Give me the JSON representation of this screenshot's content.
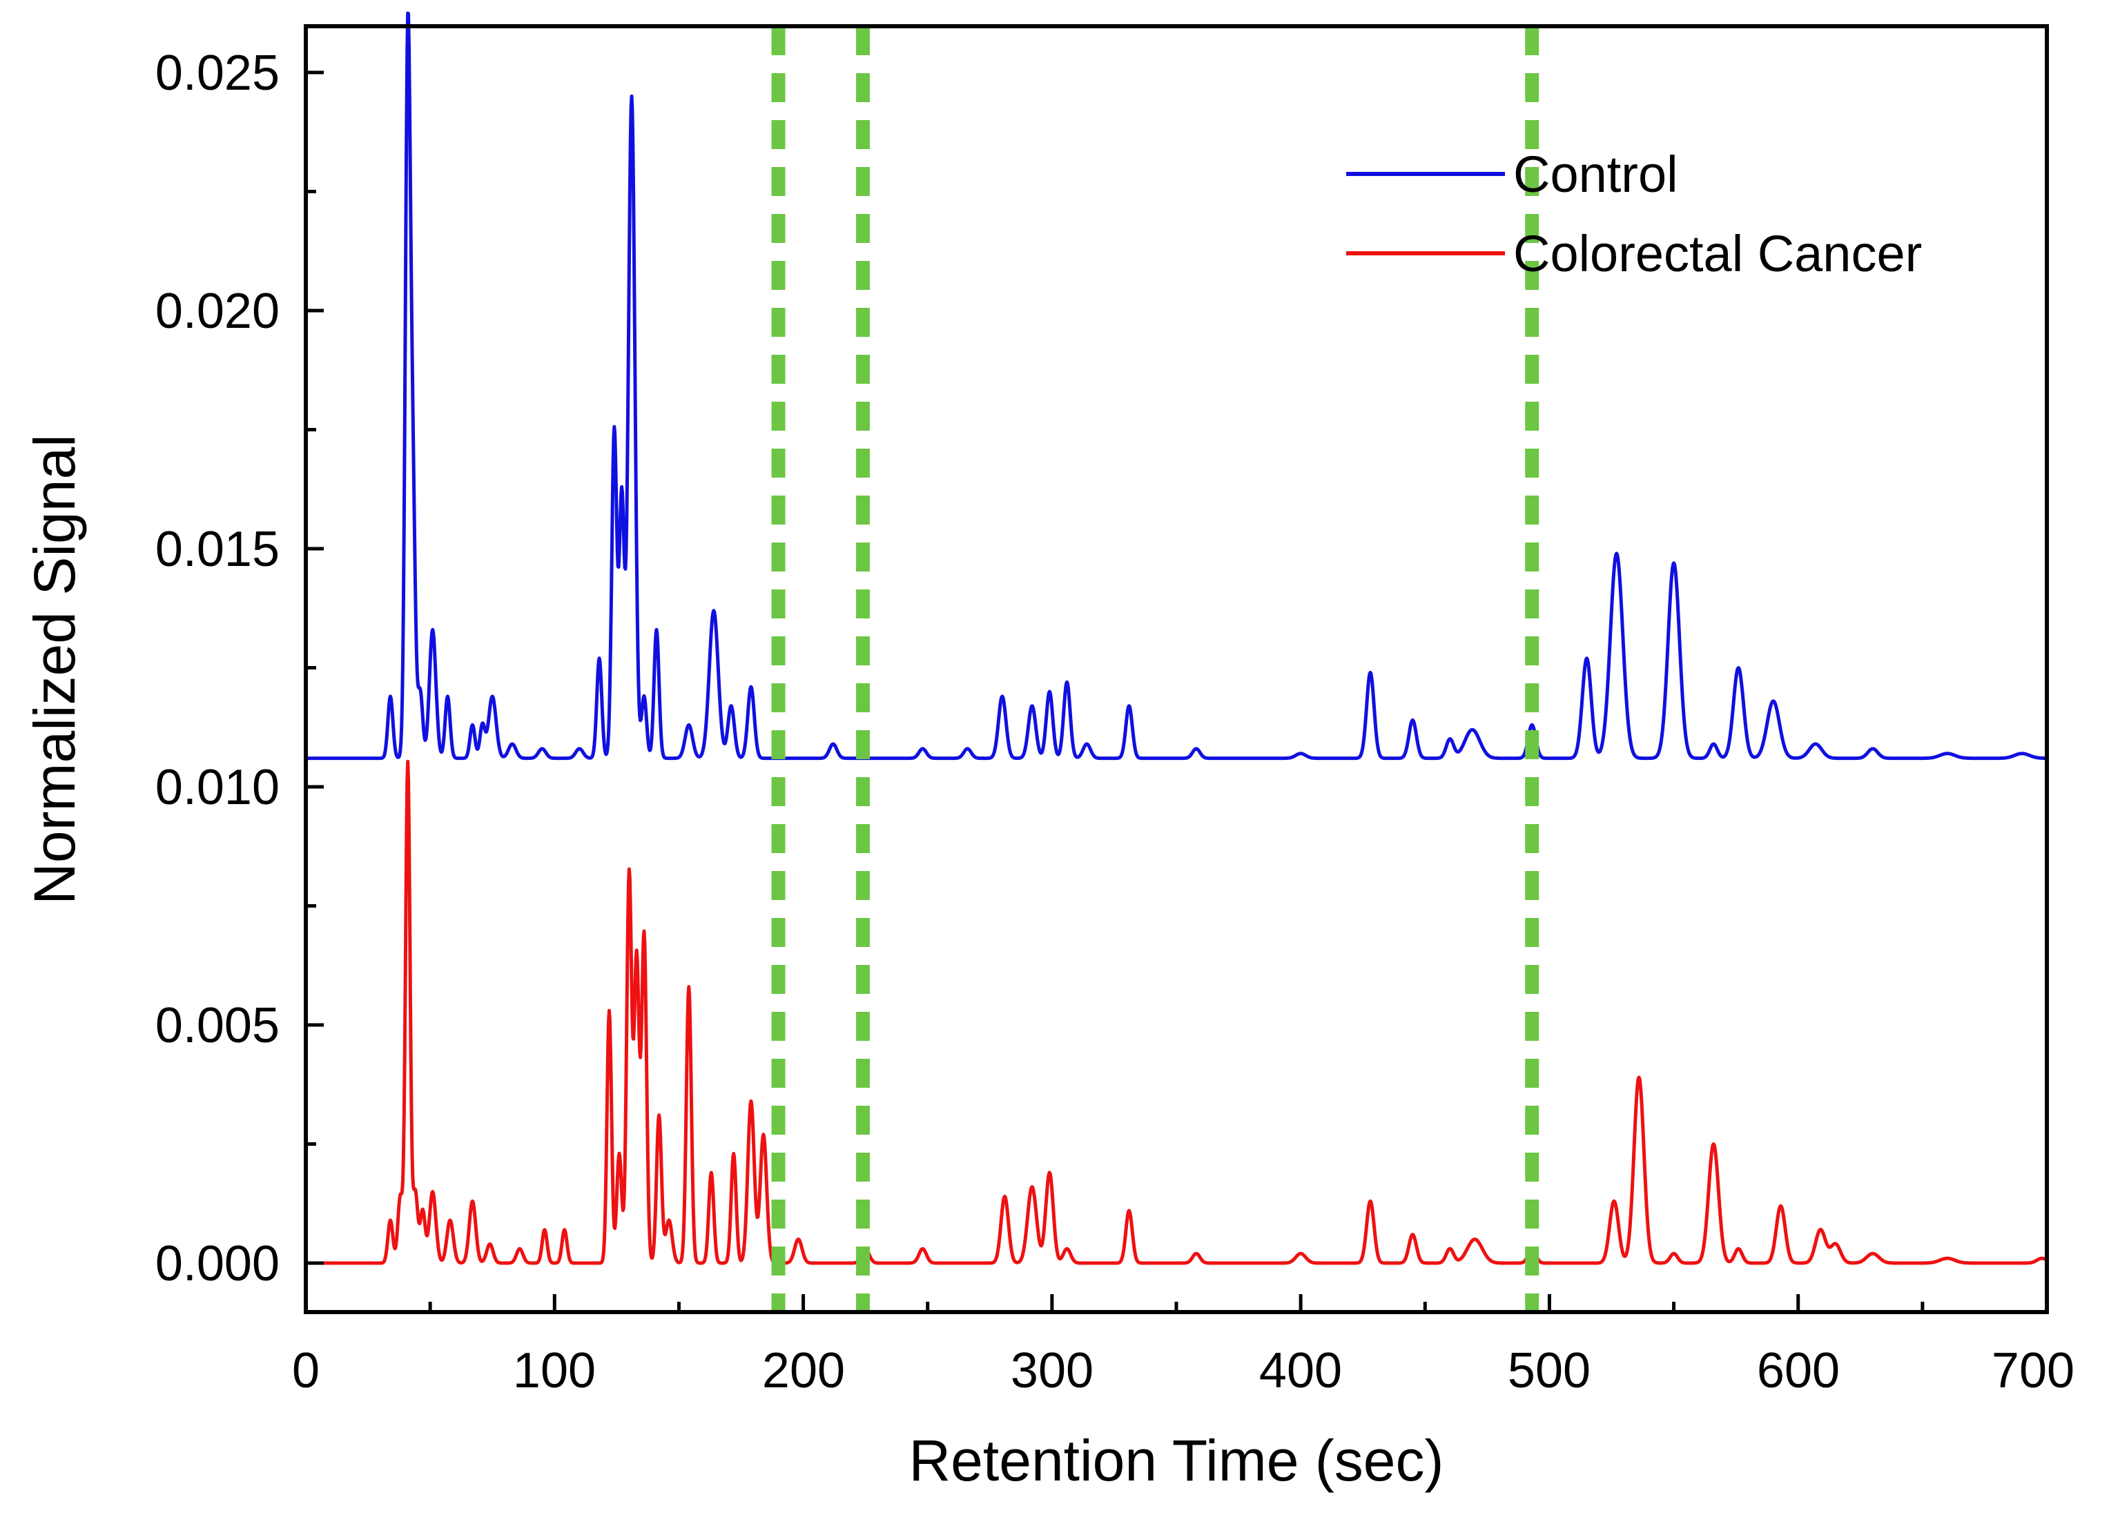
{
  "chart_data": {
    "type": "line",
    "title": "",
    "xlabel": "Retention Time (sec)",
    "ylabel": "Normalized Signal",
    "xlim": [
      0,
      700
    ],
    "ylim": [
      -0.001,
      0.026
    ],
    "xticks": [
      0,
      100,
      200,
      300,
      400,
      500,
      600,
      700
    ],
    "xtick_labels": [
      "0",
      "100",
      "200",
      "300",
      "400",
      "500",
      "600",
      "700"
    ],
    "yticks": [
      0.0,
      0.005,
      0.01,
      0.015,
      0.02,
      0.025
    ],
    "ytick_labels": [
      "0.000",
      "0.005",
      "0.010",
      "0.015",
      "0.020",
      "0.025"
    ],
    "grid": false,
    "legend_position": "top-right",
    "vertical_markers": {
      "style": "dashed",
      "color": "#6cc644",
      "x": [
        190,
        224,
        493
      ]
    },
    "series": [
      {
        "name": "Control",
        "color": "#1010e0",
        "baseline": 0.0106,
        "peaks": [
          [
            34,
            0.0013,
            1.0
          ],
          [
            41,
            0.0149,
            1.0
          ],
          [
            43,
            0.0055,
            1.0
          ],
          [
            46,
            0.0014,
            1.0
          ],
          [
            51,
            0.0027,
            1.3
          ],
          [
            57,
            0.0013,
            1.0
          ],
          [
            67,
            0.0007,
            1.0
          ],
          [
            71,
            0.0007,
            1.0
          ],
          [
            75,
            0.0013,
            1.5
          ],
          [
            83,
            0.0003,
            1.5
          ],
          [
            95,
            0.0002,
            1.5
          ],
          [
            110,
            0.0002,
            1.5
          ],
          [
            118,
            0.0021,
            1.0
          ],
          [
            124,
            0.0069,
            1.0
          ],
          [
            127,
            0.0055,
            1.0
          ],
          [
            131,
            0.0139,
            1.3
          ],
          [
            136,
            0.0013,
            1.0
          ],
          [
            141,
            0.0027,
            1.0
          ],
          [
            154,
            0.0007,
            1.5
          ],
          [
            164,
            0.0031,
            1.8
          ],
          [
            171,
            0.0011,
            1.3
          ],
          [
            179,
            0.0015,
            1.3
          ],
          [
            212,
            0.0003,
            1.5
          ],
          [
            248,
            0.0002,
            1.5
          ],
          [
            266,
            0.0002,
            1.5
          ],
          [
            280,
            0.0013,
            1.5
          ],
          [
            292,
            0.0011,
            1.5
          ],
          [
            299,
            0.0014,
            1.3
          ],
          [
            306,
            0.0016,
            1.3
          ],
          [
            314,
            0.0003,
            1.5
          ],
          [
            331,
            0.0011,
            1.3
          ],
          [
            358,
            0.0002,
            1.5
          ],
          [
            400,
            0.0001,
            2.0
          ],
          [
            428,
            0.0018,
            1.5
          ],
          [
            445,
            0.0008,
            1.5
          ],
          [
            460,
            0.0004,
            1.5
          ],
          [
            469,
            0.0006,
            3.0
          ],
          [
            493,
            0.0007,
            1.5
          ],
          [
            515,
            0.0021,
            1.8
          ],
          [
            527,
            0.0043,
            2.5
          ],
          [
            550,
            0.0041,
            2.3
          ],
          [
            566,
            0.0003,
            1.5
          ],
          [
            576,
            0.0019,
            2.0
          ],
          [
            590,
            0.0012,
            2.5
          ],
          [
            607,
            0.0003,
            2.5
          ],
          [
            630,
            0.0002,
            2.0
          ],
          [
            660,
            0.0001,
            3.0
          ],
          [
            690,
            0.0001,
            3.0
          ]
        ]
      },
      {
        "name": "Colorectal Cancer",
        "color": "#ee1111",
        "baseline": 0.0,
        "peaks": [
          [
            34,
            0.0009,
            1.0
          ],
          [
            38,
            0.0014,
            1.0
          ],
          [
            41,
            0.0105,
            0.9
          ],
          [
            44,
            0.0015,
            1.0
          ],
          [
            47,
            0.0011,
            1.0
          ],
          [
            51,
            0.0015,
            1.3
          ],
          [
            58,
            0.0009,
            1.3
          ],
          [
            67,
            0.0013,
            1.3
          ],
          [
            74,
            0.0004,
            1.3
          ],
          [
            86,
            0.0003,
            1.3
          ],
          [
            96,
            0.0007,
            1.0
          ],
          [
            104,
            0.0007,
            1.0
          ],
          [
            122,
            0.0053,
            0.9
          ],
          [
            126,
            0.0023,
            1.0
          ],
          [
            130,
            0.0082,
            1.0
          ],
          [
            133,
            0.0064,
            1.0
          ],
          [
            136,
            0.0069,
            1.0
          ],
          [
            142,
            0.0031,
            1.0
          ],
          [
            146,
            0.0009,
            1.3
          ],
          [
            154,
            0.0058,
            1.0
          ],
          [
            163,
            0.0019,
            1.0
          ],
          [
            172,
            0.0023,
            1.0
          ],
          [
            179,
            0.0034,
            1.3
          ],
          [
            184,
            0.0027,
            1.3
          ],
          [
            198,
            0.0005,
            1.5
          ],
          [
            225,
            0.0003,
            1.5
          ],
          [
            248,
            0.0003,
            1.5
          ],
          [
            281,
            0.0014,
            1.5
          ],
          [
            292,
            0.0016,
            1.8
          ],
          [
            299,
            0.0019,
            1.5
          ],
          [
            306,
            0.0003,
            1.5
          ],
          [
            331,
            0.0011,
            1.3
          ],
          [
            358,
            0.0002,
            1.5
          ],
          [
            400,
            0.0002,
            2.0
          ],
          [
            428,
            0.0013,
            1.5
          ],
          [
            445,
            0.0006,
            1.5
          ],
          [
            460,
            0.0003,
            1.5
          ],
          [
            470,
            0.0005,
            3.0
          ],
          [
            493,
            0.0003,
            1.5
          ],
          [
            526,
            0.0013,
            1.8
          ],
          [
            536,
            0.0039,
            2.0
          ],
          [
            550,
            0.0002,
            1.5
          ],
          [
            566,
            0.0025,
            2.0
          ],
          [
            576,
            0.0003,
            1.5
          ],
          [
            593,
            0.0012,
            1.8
          ],
          [
            609,
            0.0007,
            2.0
          ],
          [
            615,
            0.0004,
            2.0
          ],
          [
            630,
            0.0002,
            2.5
          ],
          [
            660,
            0.0001,
            3.0
          ],
          [
            698,
            0.0001,
            2.0
          ]
        ]
      }
    ]
  }
}
